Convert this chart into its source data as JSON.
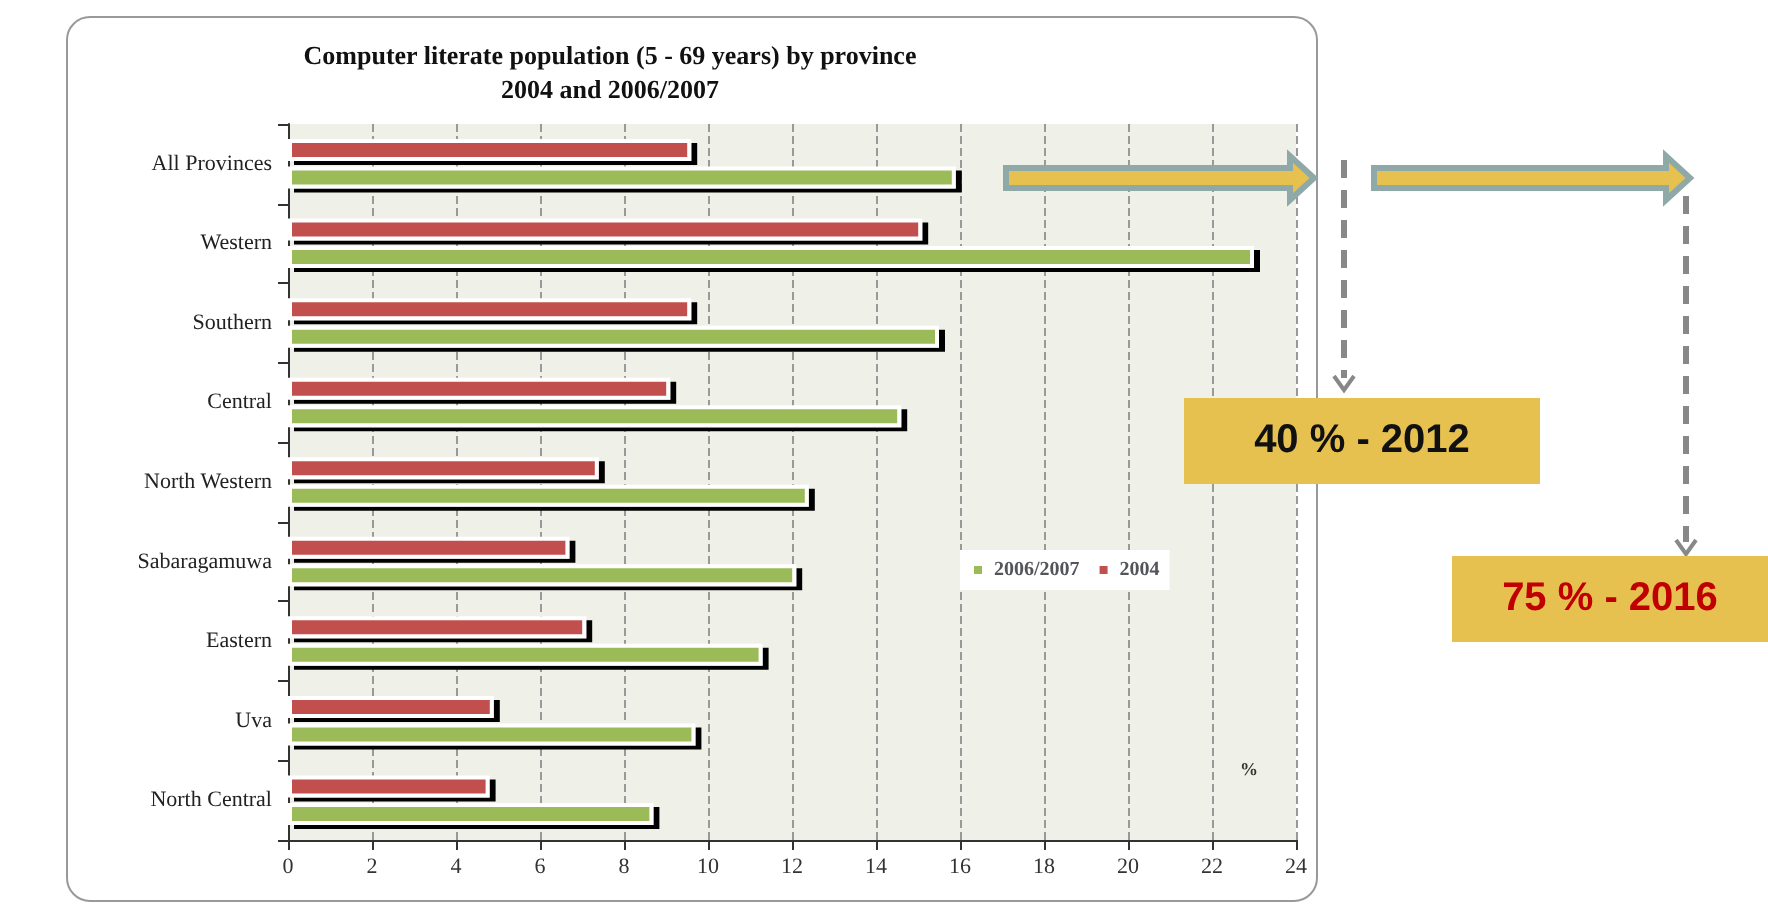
{
  "chart_data": {
    "type": "bar",
    "orientation": "horizontal",
    "title": "Computer literate population (5 - 69 years) by province\n2004 and 2006/2007",
    "categories": [
      "All Provinces",
      "Western",
      "Southern",
      "Central",
      "North Western",
      "Sabaragamuwa",
      "Eastern",
      "Uva",
      "North Central"
    ],
    "series": [
      {
        "name": "2004",
        "color": "#c0504d",
        "values": [
          9.6,
          15.1,
          9.6,
          9.1,
          7.4,
          6.7,
          7.1,
          4.9,
          4.8
        ]
      },
      {
        "name": "2006/2007",
        "color": "#9bbb59",
        "values": [
          15.9,
          23.0,
          15.5,
          14.6,
          12.4,
          12.1,
          11.3,
          9.7,
          8.7
        ]
      }
    ],
    "xlim": [
      0,
      24
    ],
    "xticks": [
      0,
      2,
      4,
      6,
      8,
      10,
      12,
      14,
      16,
      18,
      20,
      22,
      24
    ],
    "grid": "x",
    "legend": "right",
    "annotations": [
      "%",
      "40 % - 2012",
      "75 % - 2016"
    ]
  }
}
